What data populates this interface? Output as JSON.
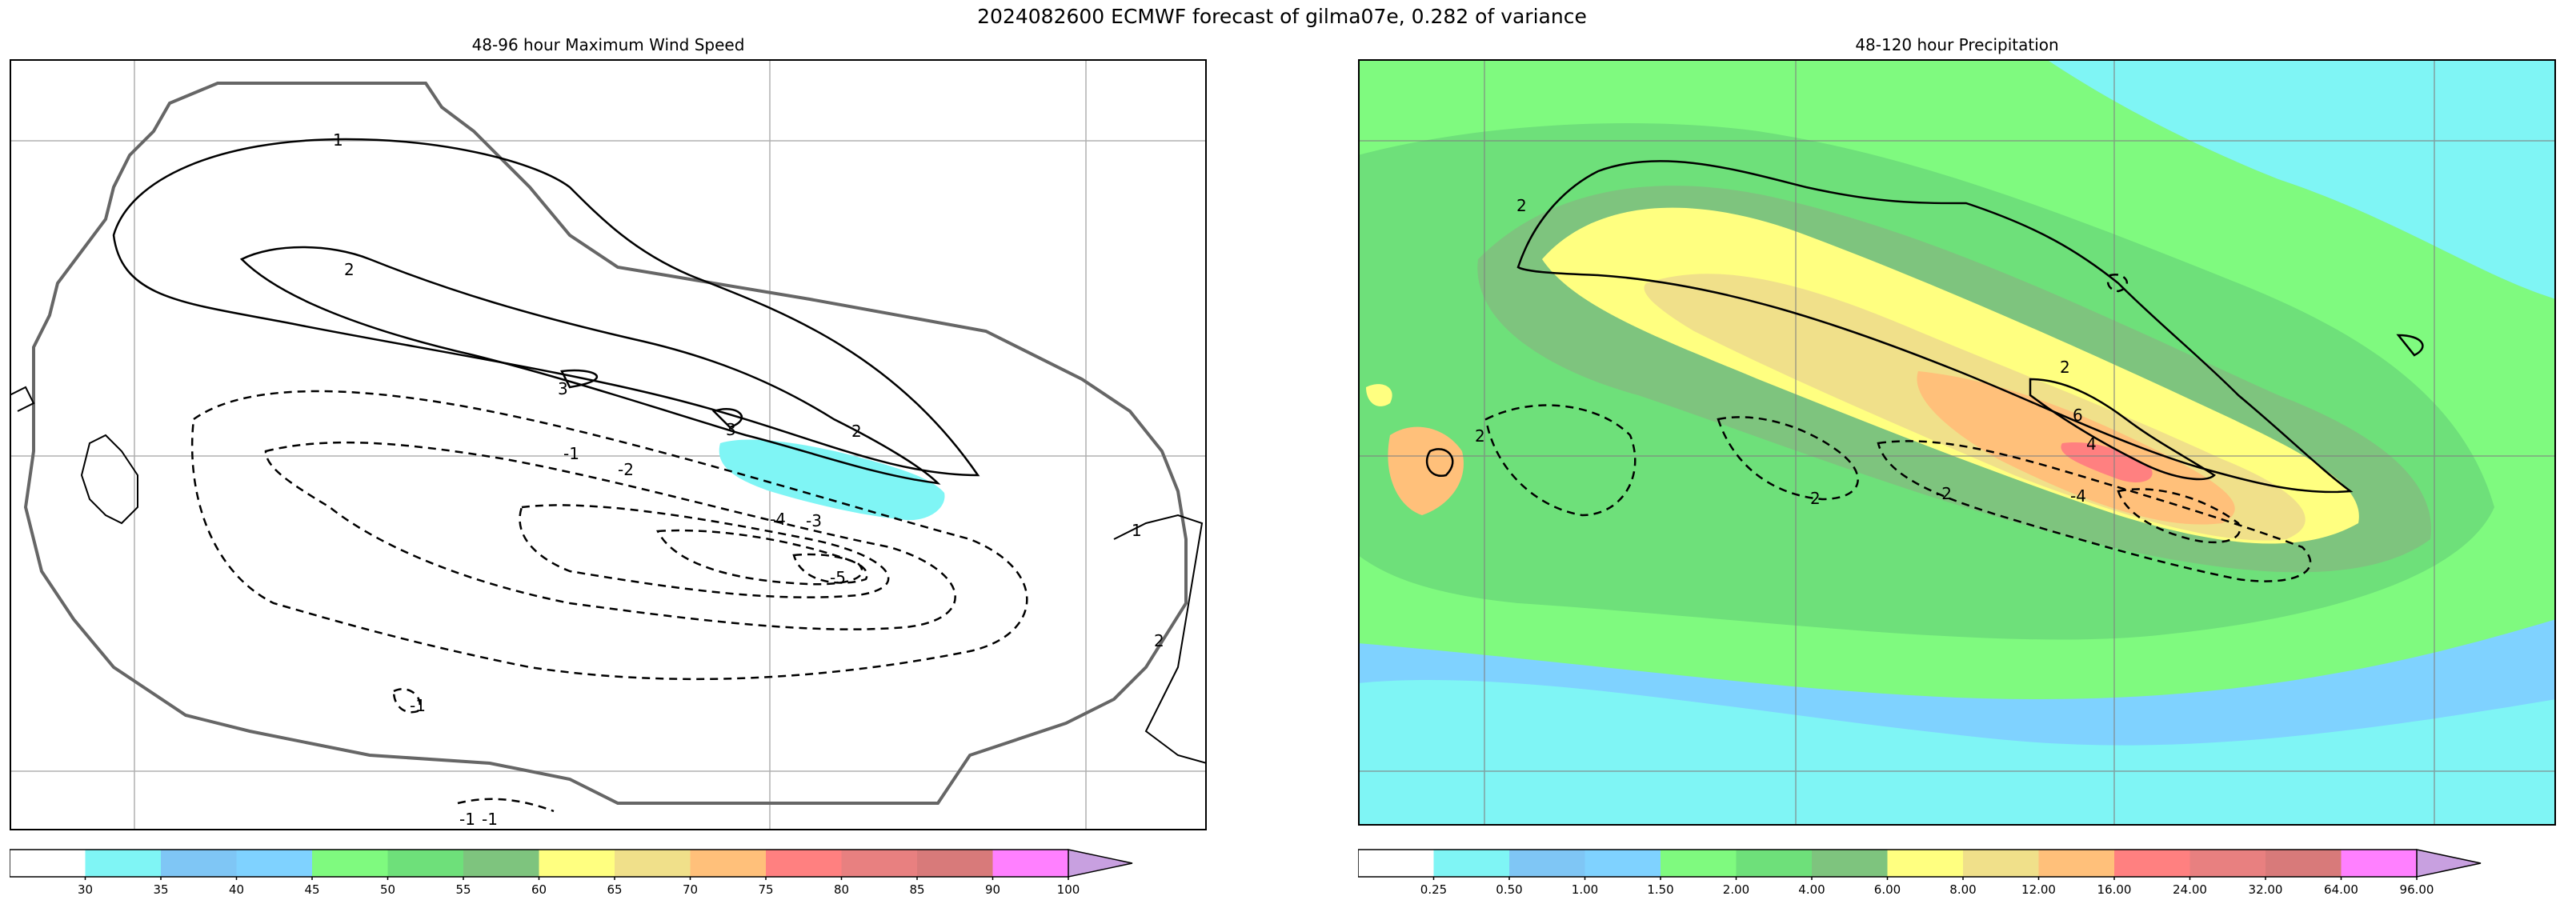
{
  "figure": {
    "title": "2024082600 ECMWF forecast of gilma07e, 0.282 of variance"
  },
  "left_panel": {
    "title": "48-96 hour Maximum Wind Speed",
    "contour_labels": [
      {
        "text": "1"
      },
      {
        "text": "2"
      },
      {
        "text": "3"
      },
      {
        "text": "3"
      },
      {
        "text": "2"
      },
      {
        "text": "-1"
      },
      {
        "text": "-2"
      },
      {
        "text": "-3"
      },
      {
        "text": "-4"
      },
      {
        "text": "-5"
      },
      {
        "text": "1"
      },
      {
        "text": "2"
      },
      {
        "text": "-1"
      },
      {
        "text": "-1"
      },
      {
        "text": "-1"
      }
    ],
    "colorbar": {
      "ticks": [
        "30",
        "35",
        "40",
        "45",
        "50",
        "55",
        "60",
        "65",
        "70",
        "75",
        "80",
        "85",
        "90",
        "100"
      ],
      "colors": [
        "#ffffff",
        "#7ff5f5",
        "#7fc6f5",
        "#7fd2ff",
        "#7ffa7f",
        "#6ee07a",
        "#7ec47e",
        "#ffff80",
        "#f0e08a",
        "#ffc07a",
        "#ff8080",
        "#e88080",
        "#d87a7a",
        "#ff80ff",
        "#c8a0e0"
      ]
    }
  },
  "right_panel": {
    "title": "48-120 hour Precipitation",
    "contour_labels": [
      {
        "text": "2"
      },
      {
        "text": "2"
      },
      {
        "text": "6"
      },
      {
        "text": "4"
      },
      {
        "text": "-2"
      },
      {
        "text": "-4"
      },
      {
        "text": "2"
      },
      {
        "text": "2"
      }
    ],
    "colorbar": {
      "ticks": [
        "0.25",
        "0.50",
        "1.00",
        "1.50",
        "2.00",
        "4.00",
        "6.00",
        "8.00",
        "12.00",
        "16.00",
        "24.00",
        "32.00",
        "64.00",
        "96.00"
      ],
      "colors": [
        "#ffffff",
        "#7ff5f5",
        "#7fc6f5",
        "#7fd2ff",
        "#7ffa7f",
        "#6ee07a",
        "#7ec47e",
        "#ffff80",
        "#f0e08a",
        "#ffc07a",
        "#ff8080",
        "#e88080",
        "#d87a7a",
        "#ff80ff",
        "#c8a0e0"
      ]
    }
  }
}
